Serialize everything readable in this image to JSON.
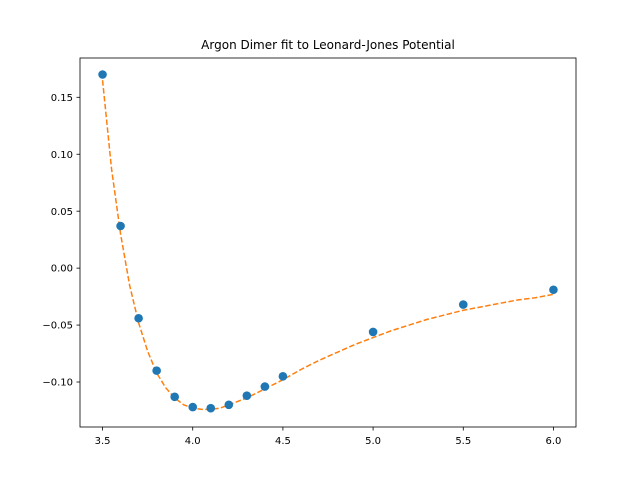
{
  "chart_data": {
    "type": "scatter",
    "title": "Argon Dimer fit to Leonard-Jones Potential",
    "xlabel": "",
    "ylabel": "",
    "xlim": [
      3.375,
      6.125
    ],
    "ylim": [
      -0.1395,
      0.1845
    ],
    "x_ticks": [
      3.5,
      4.0,
      4.5,
      5.0,
      5.5,
      6.0
    ],
    "x_tick_labels": [
      "3.5",
      "4.0",
      "4.5",
      "5.0",
      "5.5",
      "6.0"
    ],
    "y_ticks": [
      -0.1,
      -0.05,
      0.0,
      0.05,
      0.1,
      0.15
    ],
    "y_tick_labels": [
      "−0.10",
      "−0.05",
      "0.00",
      "0.05",
      "0.10",
      "0.15"
    ],
    "grid": false,
    "series": [
      {
        "kind": "scatter",
        "color": "#1f77b4",
        "x": [
          3.5,
          3.6,
          3.7,
          3.8,
          3.9,
          4.0,
          4.1,
          4.2,
          4.3,
          4.4,
          4.5,
          5.0,
          5.5,
          6.0
        ],
        "y": [
          0.17,
          0.037,
          -0.044,
          -0.09,
          -0.113,
          -0.122,
          -0.123,
          -0.12,
          -0.112,
          -0.104,
          -0.095,
          -0.056,
          -0.032,
          -0.019
        ]
      },
      {
        "kind": "line",
        "style": "dashed",
        "color": "#ff7f0e",
        "x": [
          3.5,
          3.55,
          3.6,
          3.65,
          3.7,
          3.75,
          3.8,
          3.85,
          3.9,
          3.95,
          4.0,
          4.05,
          4.1,
          4.15,
          4.2,
          4.3,
          4.4,
          4.5,
          4.6,
          4.7,
          4.8,
          4.9,
          5.0,
          5.1,
          5.2,
          5.3,
          5.4,
          5.5,
          5.6,
          5.7,
          5.8,
          5.9,
          6.0
        ],
        "y": [
          0.165,
          0.087,
          0.03,
          -0.015,
          -0.048,
          -0.073,
          -0.092,
          -0.105,
          -0.114,
          -0.12,
          -0.123,
          -0.124,
          -0.124,
          -0.123,
          -0.12,
          -0.114,
          -0.106,
          -0.098,
          -0.089,
          -0.081,
          -0.074,
          -0.067,
          -0.061,
          -0.055,
          -0.05,
          -0.045,
          -0.041,
          -0.037,
          -0.034,
          -0.031,
          -0.028,
          -0.026,
          -0.023
        ]
      }
    ]
  }
}
